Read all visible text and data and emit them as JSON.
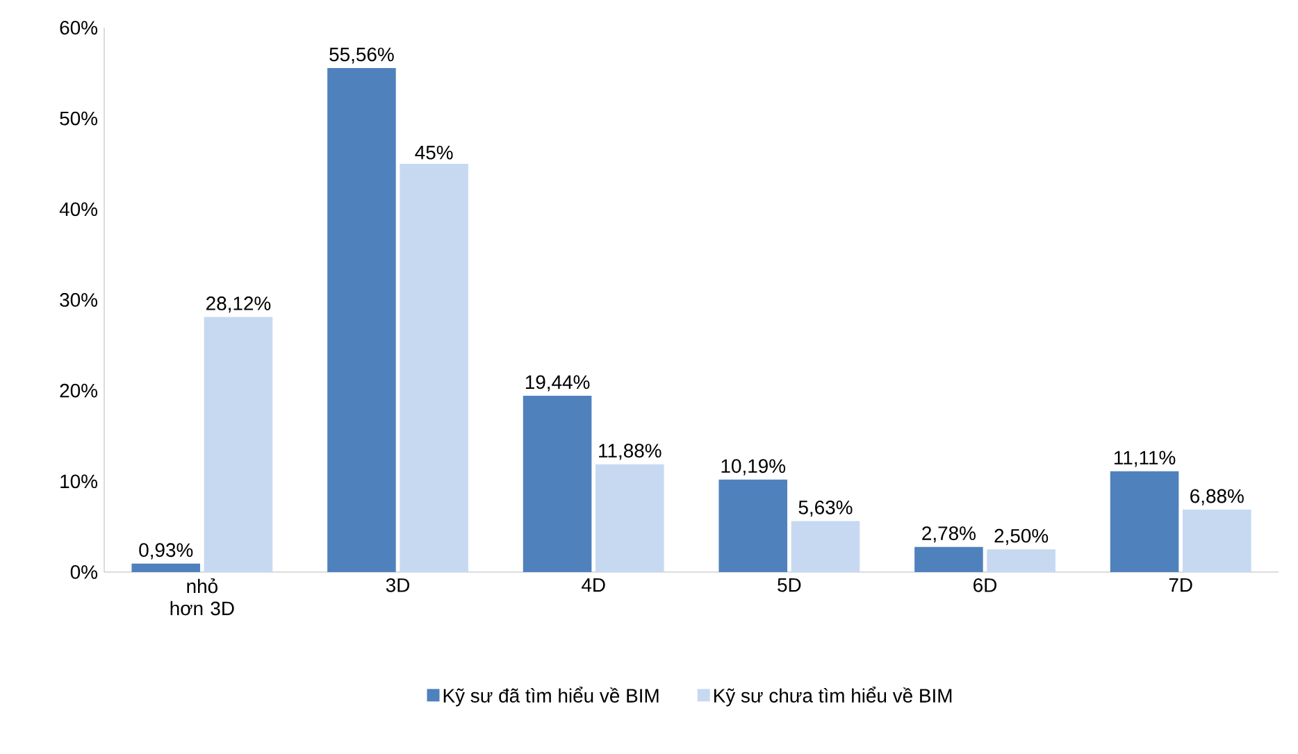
{
  "chart_data": {
    "type": "bar",
    "categories": [
      "nhỏ hơn 3D",
      "3D",
      "4D",
      "5D",
      "6D",
      "7D"
    ],
    "series": [
      {
        "name": "Kỹ sư đã tìm hiểu về BIM",
        "color": "#4f81bd",
        "values": [
          0.93,
          55.56,
          19.44,
          10.19,
          2.78,
          11.11
        ],
        "value_labels": [
          "0,93%",
          "55,56%",
          "19,44%",
          "10,19%",
          "2,78%",
          "11,11%"
        ]
      },
      {
        "name": "Kỹ sư chưa tìm hiểu về BIM",
        "color": "#c6d9f1",
        "values": [
          28.12,
          45,
          11.88,
          5.63,
          2.5,
          6.88
        ],
        "value_labels": [
          "28,12%",
          "45%",
          "11,88%",
          "5,63%",
          "2,50%",
          "6,88%"
        ]
      }
    ],
    "ylim": [
      0,
      60
    ],
    "yticks": [
      {
        "value": 0,
        "label": "0%"
      },
      {
        "value": 10,
        "label": "10%"
      },
      {
        "value": 20,
        "label": "20%"
      },
      {
        "value": 30,
        "label": "30%"
      },
      {
        "value": 40,
        "label": "40%"
      },
      {
        "value": 50,
        "label": "50%"
      },
      {
        "value": 60,
        "label": "60%"
      }
    ],
    "legend": "bottom",
    "grid": false
  }
}
